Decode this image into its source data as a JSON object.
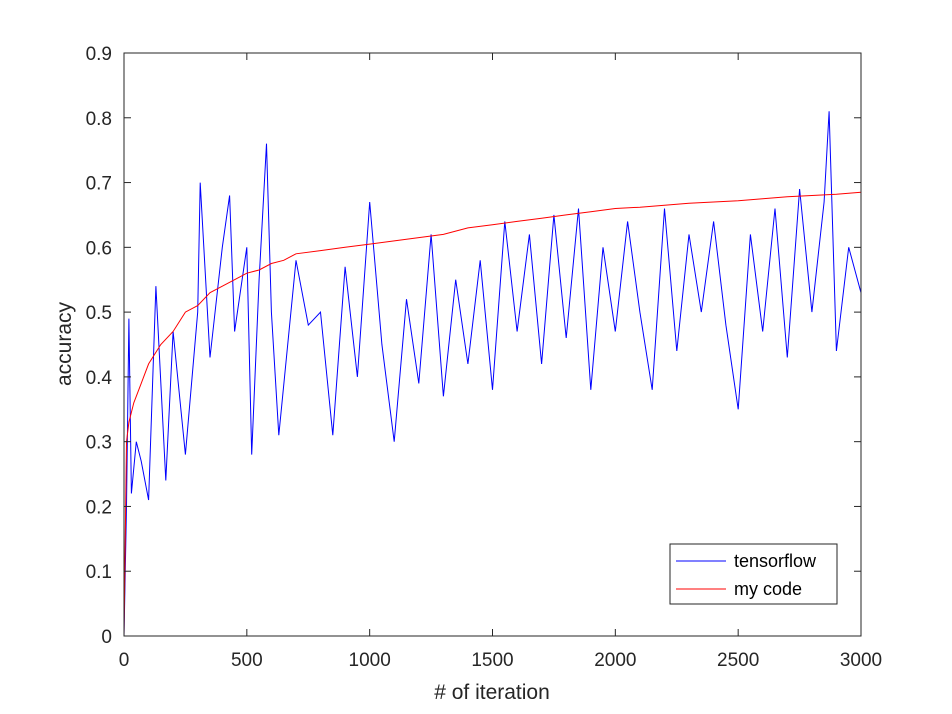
{
  "chart_data": {
    "type": "line",
    "xlabel": "# of iteration",
    "ylabel": "accuracy",
    "xlim": [
      0,
      3000
    ],
    "ylim": [
      0,
      0.9
    ],
    "xticks": [
      0,
      500,
      1000,
      1500,
      2000,
      2500,
      3000
    ],
    "yticks": [
      0,
      0.1,
      0.2,
      0.3,
      0.4,
      0.5,
      0.6,
      0.7,
      0.8,
      0.9
    ],
    "xtick_labels": [
      "0",
      "500",
      "1000",
      "1500",
      "2000",
      "2500",
      "3000"
    ],
    "ytick_labels": [
      "0",
      "0.1",
      "0.2",
      "0.3",
      "0.4",
      "0.5",
      "0.6",
      "0.7",
      "0.8",
      "0.9"
    ],
    "grid": false,
    "legend_position": "bottom-right",
    "series": [
      {
        "name": "tensorflow",
        "color": "#0000ff",
        "x": [
          0,
          10,
          20,
          30,
          50,
          70,
          100,
          130,
          170,
          200,
          250,
          300,
          310,
          350,
          400,
          430,
          450,
          500,
          520,
          550,
          580,
          600,
          630,
          700,
          750,
          800,
          850,
          900,
          950,
          1000,
          1050,
          1100,
          1150,
          1200,
          1250,
          1300,
          1350,
          1400,
          1450,
          1500,
          1550,
          1600,
          1650,
          1700,
          1750,
          1800,
          1850,
          1900,
          1950,
          2000,
          2050,
          2100,
          2150,
          2200,
          2250,
          2300,
          2350,
          2400,
          2450,
          2500,
          2550,
          2600,
          2650,
          2700,
          2750,
          2800,
          2850,
          2870,
          2900,
          2950,
          3000
        ],
        "y": [
          0.0,
          0.2,
          0.49,
          0.22,
          0.3,
          0.27,
          0.21,
          0.54,
          0.24,
          0.47,
          0.28,
          0.5,
          0.7,
          0.43,
          0.6,
          0.68,
          0.47,
          0.6,
          0.28,
          0.55,
          0.76,
          0.5,
          0.31,
          0.58,
          0.48,
          0.5,
          0.31,
          0.57,
          0.4,
          0.67,
          0.45,
          0.3,
          0.52,
          0.39,
          0.62,
          0.37,
          0.55,
          0.42,
          0.58,
          0.38,
          0.64,
          0.47,
          0.62,
          0.42,
          0.65,
          0.46,
          0.66,
          0.38,
          0.6,
          0.47,
          0.64,
          0.5,
          0.38,
          0.66,
          0.44,
          0.62,
          0.5,
          0.64,
          0.48,
          0.35,
          0.62,
          0.47,
          0.66,
          0.43,
          0.69,
          0.5,
          0.67,
          0.81,
          0.44,
          0.6,
          0.53
        ]
      },
      {
        "name": "my code",
        "color": "#ff0000",
        "x": [
          0,
          10,
          20,
          40,
          70,
          100,
          150,
          200,
          250,
          300,
          350,
          400,
          450,
          500,
          550,
          600,
          650,
          700,
          800,
          900,
          1000,
          1100,
          1200,
          1300,
          1400,
          1500,
          1600,
          1700,
          1800,
          1900,
          2000,
          2100,
          2200,
          2300,
          2400,
          2500,
          2600,
          2700,
          2800,
          2900,
          3000
        ],
        "y": [
          0.0,
          0.3,
          0.33,
          0.36,
          0.39,
          0.42,
          0.45,
          0.47,
          0.5,
          0.51,
          0.53,
          0.54,
          0.55,
          0.56,
          0.565,
          0.575,
          0.58,
          0.59,
          0.595,
          0.6,
          0.605,
          0.61,
          0.615,
          0.62,
          0.63,
          0.635,
          0.64,
          0.645,
          0.65,
          0.655,
          0.66,
          0.662,
          0.665,
          0.668,
          0.67,
          0.672,
          0.675,
          0.678,
          0.68,
          0.682,
          0.685
        ]
      }
    ]
  }
}
